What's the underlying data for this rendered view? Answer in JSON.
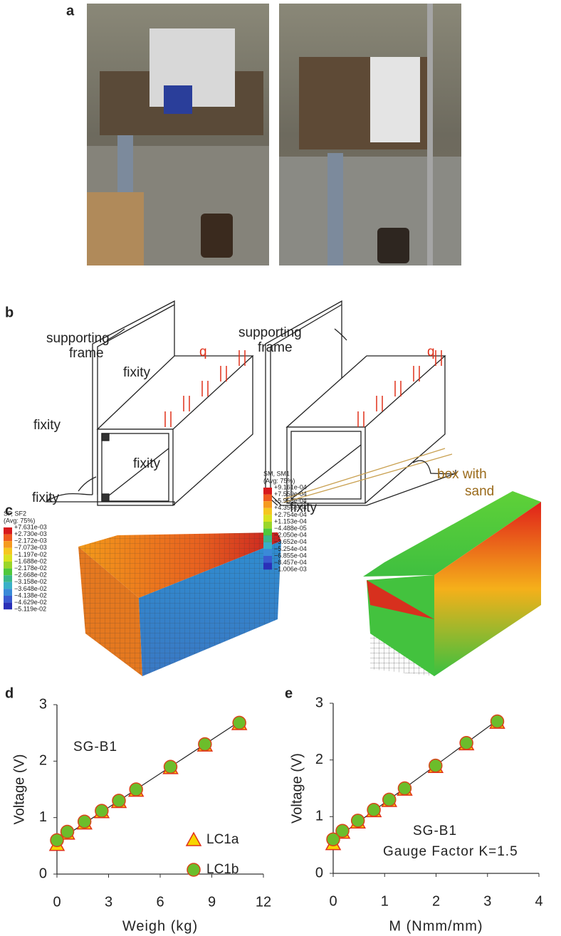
{
  "panel_labels": [
    "a",
    "b",
    "c",
    "d",
    "e"
  ],
  "diagram": {
    "left": {
      "frame_label": [
        "supporting",
        "frame"
      ],
      "load_label": "q",
      "fixity_labels": [
        "fixity",
        "fixity",
        "fixity",
        "fixity"
      ]
    },
    "right": {
      "frame_label": [
        "supporting",
        "frame"
      ],
      "load_label": "q",
      "fixity_label": "fixity",
      "sand_label": [
        "box with",
        "sand"
      ]
    }
  },
  "contour_legends": [
    {
      "title": [
        "SF, SF2",
        "(Avg: 75%)"
      ],
      "labels": [
        "+7.631e-03",
        "+2.730e-03",
        "−2.172e-03",
        "−7.073e-03",
        "−1.197e-02",
        "−1.688e-02",
        "−2.178e-02",
        "−2.668e-02",
        "−3.158e-02",
        "−3.648e-02",
        "−4.138e-02",
        "−4.629e-02",
        "−5.119e-02"
      ]
    },
    {
      "title": [
        "SM, SM1",
        "(Avg: 75%)"
      ],
      "labels": [
        "+9.161e-04",
        "+7.559e-04",
        "+5.958e-04",
        "+4.356e-04",
        "+2.754e-04",
        "+1.153e-04",
        "−4.488e-05",
        "−2.050e-04",
        "−3.652e-04",
        "−5.254e-04",
        "−6.855e-04",
        "−8.457e-04",
        "−1.006e-03"
      ]
    }
  ],
  "chart_data": [
    {
      "type": "scatter",
      "xlabel": "Weigh (kg)",
      "ylabel": "Voltage (V)",
      "annotations": [
        "SG-B1"
      ],
      "x": [
        0,
        0.6,
        1.6,
        2.6,
        3.6,
        4.6,
        6.6,
        8.6,
        10.6
      ],
      "series": [
        {
          "name": "LC1a",
          "marker": "triangle",
          "color": "#f7d500",
          "edgecolor": "#e0301a",
          "values": [
            0.52,
            0.72,
            0.9,
            1.1,
            1.28,
            1.48,
            1.88,
            2.28,
            2.66
          ]
        },
        {
          "name": "LC1b",
          "marker": "circle",
          "color": "#6cbd2b",
          "edgecolor": "#d9441a",
          "values": [
            0.6,
            0.75,
            0.93,
            1.12,
            1.3,
            1.5,
            1.9,
            2.3,
            2.68
          ]
        }
      ],
      "trendline": {
        "x": [
          0,
          10.6
        ],
        "values": [
          0.58,
          2.7
        ]
      },
      "xlim": [
        0,
        12
      ],
      "ylim": [
        0,
        3
      ],
      "xticks": [
        0,
        3,
        6,
        9,
        12
      ],
      "yticks": [
        0,
        1,
        2,
        3
      ],
      "legend": "lower right"
    },
    {
      "type": "scatter",
      "xlabel": "M (Nmm/mm)",
      "ylabel": "Voltage (V)",
      "annotations": [
        "SG-B1",
        "Gauge Factor K=1.5"
      ],
      "x": [
        0,
        0.18,
        0.48,
        0.79,
        1.09,
        1.39,
        1.99,
        2.59,
        3.19
      ],
      "series": [
        {
          "marker": "triangle",
          "color": "#f7d500",
          "edgecolor": "#e0301a",
          "values": [
            0.52,
            0.72,
            0.9,
            1.1,
            1.28,
            1.48,
            1.88,
            2.28,
            2.66
          ]
        },
        {
          "marker": "circle",
          "color": "#6cbd2b",
          "edgecolor": "#d9441a",
          "values": [
            0.6,
            0.75,
            0.93,
            1.12,
            1.3,
            1.5,
            1.9,
            2.3,
            2.68
          ]
        }
      ],
      "trendline": {
        "x": [
          0,
          3.19
        ],
        "values": [
          0.58,
          2.7
        ]
      },
      "xlim": [
        0,
        4
      ],
      "ylim": [
        0,
        3
      ],
      "xticks": [
        0,
        1,
        2,
        3,
        4
      ],
      "yticks": [
        0,
        1,
        2,
        3
      ]
    }
  ]
}
